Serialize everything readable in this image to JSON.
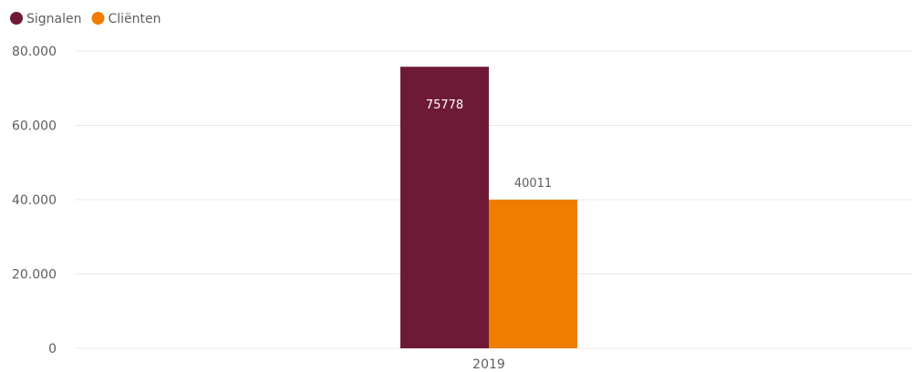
{
  "chart_data": {
    "type": "bar",
    "categories": [
      "2019"
    ],
    "series": [
      {
        "name": "Signalen",
        "values": [
          75778
        ],
        "color": "#6e1a37",
        "label_color": "#ffffff",
        "label_position": "inside"
      },
      {
        "name": "Cliënten",
        "values": [
          40011
        ],
        "color": "#f07d00",
        "label_color": "#605e5c",
        "label_position": "outside"
      }
    ],
    "ylim": [
      0,
      80000
    ],
    "yticks": [
      0,
      20000,
      40000,
      60000,
      80000
    ],
    "ytick_labels": [
      "0",
      "20.000",
      "40.000",
      "60.000",
      "80.000"
    ],
    "grid": true,
    "legend_position": "top-left",
    "title": "",
    "xlabel": "",
    "ylabel": ""
  }
}
